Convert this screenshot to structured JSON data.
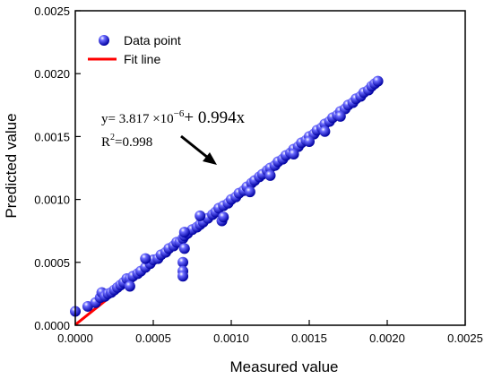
{
  "chart_data": {
    "type": "scatter",
    "xlabel": "Measured value",
    "ylabel": "Predicted value",
    "xlim": [
      0,
      0.0025
    ],
    "ylim": [
      0,
      0.0025
    ],
    "x_ticks": [
      "0.0000",
      "0.0005",
      "0.0010",
      "0.0015",
      "0.0020",
      "0.0025"
    ],
    "y_ticks": [
      "0.0000",
      "0.0005",
      "0.0010",
      "0.0015",
      "0.0020",
      "0.0025"
    ],
    "legend": {
      "position": "top-left",
      "entries": [
        "Data point",
        "Fit line"
      ]
    },
    "grid": false,
    "series": [
      {
        "name": "Data point",
        "type": "scatter",
        "color": "#2222dd",
        "points": [
          [
            0.0,
            0.00011
          ],
          [
            8e-05,
            0.00015
          ],
          [
            0.00013,
            0.00018
          ],
          [
            0.00016,
            0.00022
          ],
          [
            0.00017,
            0.00026
          ],
          [
            0.00019,
            0.00023
          ],
          [
            0.00021,
            0.00025
          ],
          [
            0.00023,
            0.00026
          ],
          [
            0.00025,
            0.00028
          ],
          [
            0.00027,
            0.0003
          ],
          [
            0.00029,
            0.00032
          ],
          [
            0.00031,
            0.00034
          ],
          [
            0.00033,
            0.00037
          ],
          [
            0.00035,
            0.00037
          ],
          [
            0.00037,
            0.00039
          ],
          [
            0.0004,
            0.00041
          ],
          [
            0.00042,
            0.00043
          ],
          [
            0.00045,
            0.00046
          ],
          [
            0.00048,
            0.00049
          ],
          [
            0.0005,
            0.00052
          ],
          [
            0.00053,
            0.00053
          ],
          [
            0.00055,
            0.00056
          ],
          [
            0.00058,
            0.00058
          ],
          [
            0.0006,
            0.00061
          ],
          [
            0.00063,
            0.00063
          ],
          [
            0.00065,
            0.00066
          ],
          [
            0.00067,
            0.00066
          ],
          [
            0.00069,
            0.00069
          ],
          [
            0.0007,
            0.00071
          ],
          [
            0.00072,
            0.00073
          ],
          [
            0.00075,
            0.00076
          ],
          [
            0.00078,
            0.00078
          ],
          [
            0.0008,
            0.0008
          ],
          [
            0.00082,
            0.00082
          ],
          [
            0.00085,
            0.00085
          ],
          [
            0.00088,
            0.00088
          ],
          [
            0.0009,
            0.0009
          ],
          [
            0.00092,
            0.00093
          ],
          [
            0.00095,
            0.00095
          ],
          [
            0.00098,
            0.00097
          ],
          [
            0.001,
            0.001
          ],
          [
            0.00103,
            0.00102
          ],
          [
            0.00105,
            0.00105
          ],
          [
            0.00108,
            0.00107
          ],
          [
            0.0011,
            0.0011
          ],
          [
            0.00113,
            0.00113
          ],
          [
            0.00115,
            0.00115
          ],
          [
            0.00118,
            0.00118
          ],
          [
            0.0012,
            0.0012
          ],
          [
            0.00123,
            0.00123
          ],
          [
            0.00125,
            0.00125
          ],
          [
            0.00128,
            0.00127
          ],
          [
            0.0013,
            0.0013
          ],
          [
            0.00133,
            0.00132
          ],
          [
            0.00135,
            0.00135
          ],
          [
            0.00138,
            0.00137
          ],
          [
            0.0014,
            0.0014
          ],
          [
            0.00143,
            0.00142
          ],
          [
            0.00145,
            0.00145
          ],
          [
            0.00148,
            0.00147
          ],
          [
            0.0015,
            0.0015
          ],
          [
            0.00153,
            0.00152
          ],
          [
            0.00155,
            0.00155
          ],
          [
            0.00158,
            0.00157
          ],
          [
            0.0016,
            0.0016
          ],
          [
            0.00163,
            0.00162
          ],
          [
            0.00165,
            0.00165
          ],
          [
            0.00168,
            0.00167
          ],
          [
            0.0017,
            0.0017
          ],
          [
            0.00173,
            0.00172
          ],
          [
            0.00175,
            0.00175
          ],
          [
            0.00178,
            0.00177
          ],
          [
            0.0018,
            0.0018
          ],
          [
            0.00183,
            0.00182
          ],
          [
            0.00185,
            0.00185
          ],
          [
            0.00188,
            0.00187
          ],
          [
            0.0019,
            0.0019
          ],
          [
            0.00192,
            0.00192
          ],
          [
            0.00194,
            0.00194
          ],
          [
            0.00069,
            0.0005
          ],
          [
            0.00069,
            0.00043
          ],
          [
            0.00069,
            0.00039
          ],
          [
            0.0007,
            0.00061
          ],
          [
            0.00094,
            0.00083
          ],
          [
            0.00095,
            0.00086
          ],
          [
            0.0008,
            0.00087
          ],
          [
            0.0007,
            0.00074
          ],
          [
            0.00035,
            0.00031
          ],
          [
            0.00045,
            0.00053
          ],
          [
            0.00112,
            0.00106
          ],
          [
            0.0015,
            0.00146
          ],
          [
            0.0016,
            0.00154
          ],
          [
            0.0017,
            0.00166
          ],
          [
            0.0014,
            0.00136
          ],
          [
            0.00125,
            0.00119
          ]
        ]
      },
      {
        "name": "Fit line",
        "type": "line",
        "color": "#ff0000",
        "x": [
          0.0,
          0.00195
        ],
        "y": [
          3.817e-06,
          0.00194213
        ]
      }
    ],
    "annotation": {
      "eq_prefix": "y= 3.817 ×10",
      "eq_exp": "−6",
      "eq_suffix": "+ 0.994x",
      "r2_base": "R",
      "r2_sup": "2",
      "r2_value": "=0.998"
    }
  }
}
